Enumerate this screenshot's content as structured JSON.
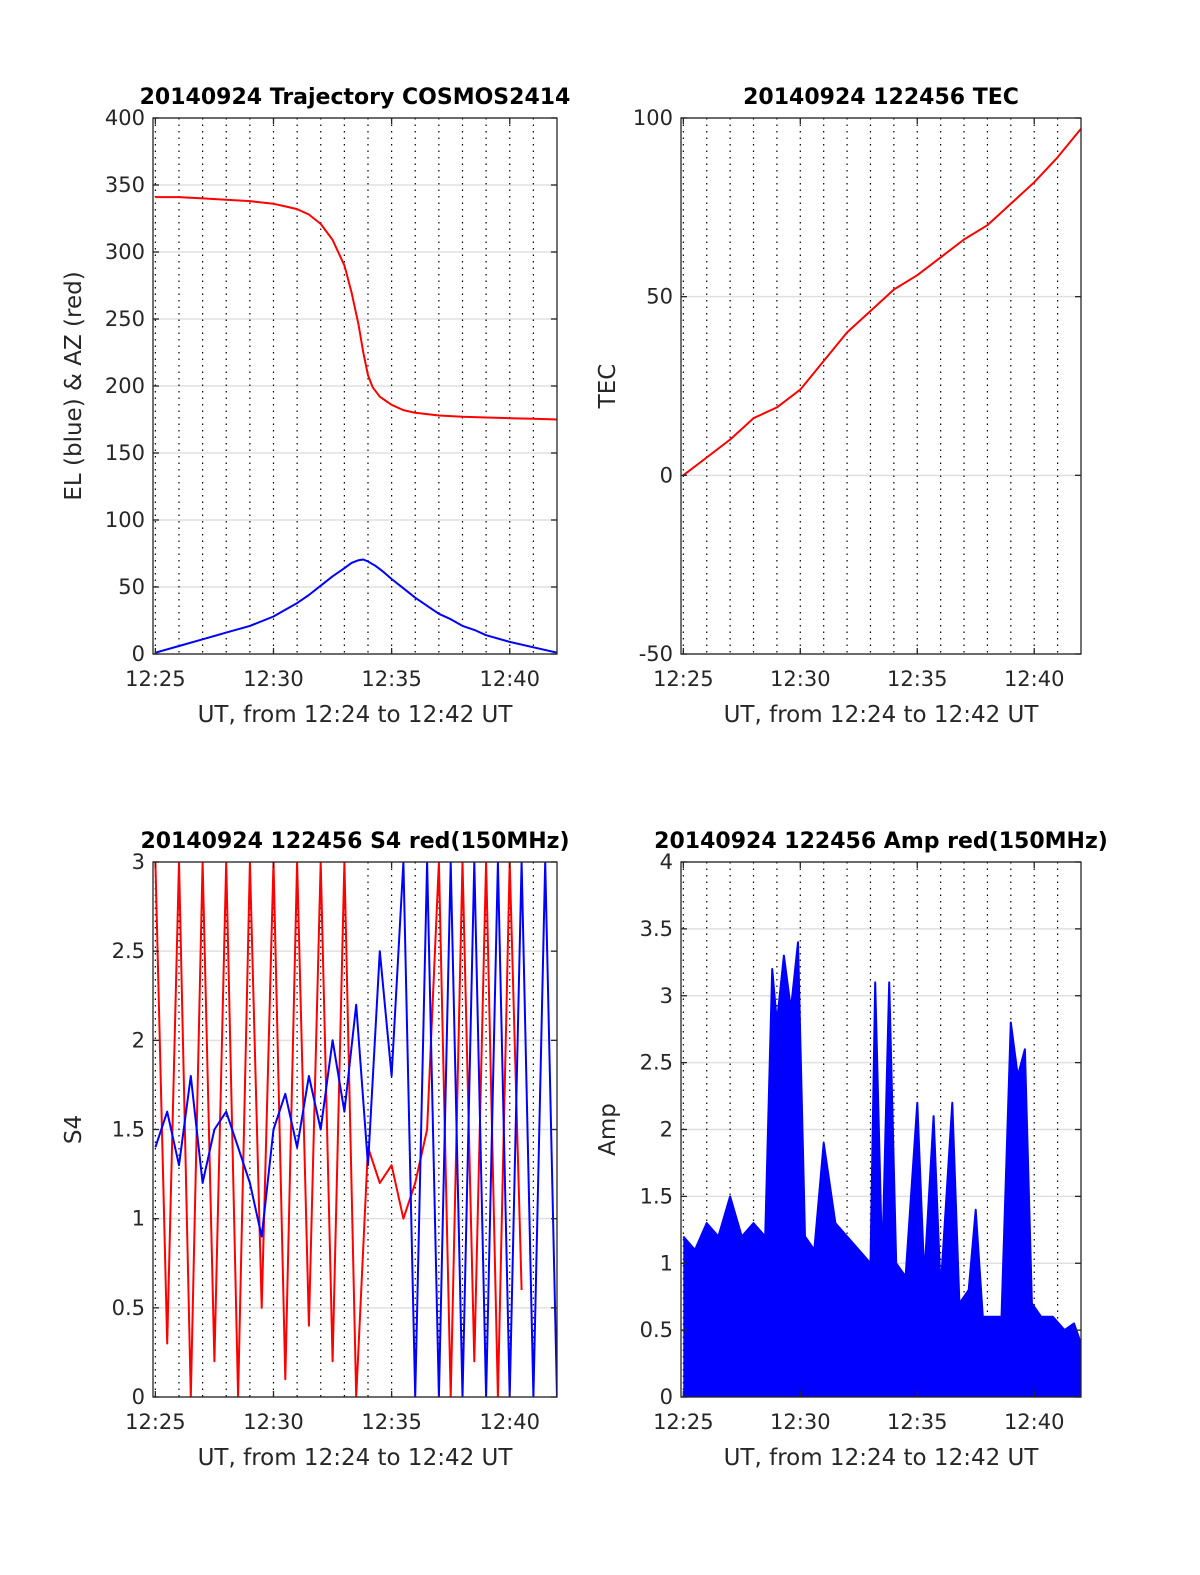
{
  "figure": {
    "panels": [
      {
        "title": "20140924 Trajectory COSMOS2414",
        "xlabel": "UT, from 12:24 to 12:42 UT",
        "ylabel": "EL (blue) & AZ (red)"
      },
      {
        "title": "20140924 122456 TEC",
        "xlabel": "UT, from 12:24 to 12:42 UT",
        "ylabel": "TEC"
      },
      {
        "title": "20140924 122456 S4 red(150MHz)",
        "xlabel": "UT, from 12:24 to 12:42 UT",
        "ylabel": "S4"
      },
      {
        "title": "20140924 122456 Amp red(150MHz)",
        "xlabel": "UT, from 12:24 to 12:42 UT",
        "ylabel": "Amp"
      }
    ]
  },
  "chart_data": [
    {
      "type": "line",
      "title": "20140924 Trajectory COSMOS2414",
      "xlabel": "UT, from 12:24 to 12:42 UT",
      "ylabel": "EL (blue) & AZ (red)",
      "x_unit": "minutes after 12:00 UT",
      "xlim": [
        24.9,
        42
      ],
      "ylim": [
        0,
        400
      ],
      "xticks": [
        25,
        30,
        35,
        40
      ],
      "xtick_labels": [
        "12:25",
        "12:30",
        "12:35",
        "12:40"
      ],
      "yticks": [
        0,
        50,
        100,
        150,
        200,
        250,
        300,
        350,
        400
      ],
      "grid": true,
      "series": [
        {
          "color": "#ff0000",
          "x": [
            25,
            26,
            27,
            28,
            29,
            30,
            30.5,
            31,
            31.5,
            32,
            32.5,
            33,
            33.3,
            33.6,
            33.8,
            34,
            34.2,
            34.5,
            35,
            35.5,
            36,
            36.5,
            37,
            38,
            39,
            40,
            41,
            42
          ],
          "y": [
            341,
            341,
            340,
            339,
            338,
            336,
            334,
            332,
            328,
            321,
            309,
            290,
            270,
            246,
            225,
            208,
            199,
            192,
            186,
            182,
            180,
            179,
            178,
            177,
            176.5,
            176,
            175.5,
            175
          ]
        },
        {
          "color": "#0000ff",
          "x": [
            25,
            26,
            27,
            28,
            29,
            30,
            30.5,
            31,
            31.5,
            32,
            32.5,
            33,
            33.3,
            33.6,
            33.8,
            34,
            34.3,
            34.6,
            35,
            35.5,
            36,
            36.5,
            37,
            37.5,
            38,
            38.5,
            39,
            40,
            41,
            42
          ],
          "y": [
            1,
            6,
            11,
            16,
            21,
            28,
            33,
            38,
            44,
            51,
            58,
            64,
            68,
            70,
            70.5,
            69,
            66,
            62,
            56,
            49,
            42,
            36,
            30,
            26,
            21,
            18,
            14,
            9,
            5,
            1
          ]
        }
      ]
    },
    {
      "type": "line",
      "title": "20140924 122456 TEC",
      "xlabel": "UT, from 12:24 to 12:42 UT",
      "ylabel": "TEC",
      "x_unit": "minutes after 12:00 UT",
      "xlim": [
        24.9,
        42
      ],
      "ylim": [
        -50,
        100
      ],
      "xticks": [
        25,
        30,
        35,
        40
      ],
      "xtick_labels": [
        "12:25",
        "12:30",
        "12:35",
        "12:40"
      ],
      "yticks": [
        -50,
        0,
        50,
        100
      ],
      "grid": true,
      "series": [
        {
          "color": "#ff0000",
          "x": [
            25,
            26,
            27,
            28,
            29,
            30,
            31,
            32,
            33,
            34,
            35,
            36,
            37,
            38,
            39,
            40,
            41,
            42
          ],
          "y": [
            0,
            5,
            10,
            16,
            19,
            24,
            32,
            40,
            46,
            52,
            56,
            61,
            66,
            70,
            76,
            82,
            89,
            97
          ]
        }
      ]
    },
    {
      "type": "line",
      "title": "20140924 122456 S4 red(150MHz)",
      "xlabel": "UT, from 12:24 to 12:42 UT",
      "ylabel": "S4",
      "x_unit": "minutes after 12:00 UT",
      "xlim": [
        24.9,
        42
      ],
      "ylim": [
        0,
        3
      ],
      "xticks": [
        25,
        30,
        35,
        40
      ],
      "xtick_labels": [
        "12:25",
        "12:30",
        "12:35",
        "12:40"
      ],
      "yticks": [
        0,
        0.5,
        1,
        1.5,
        2,
        2.5,
        3
      ],
      "grid": true,
      "series": [
        {
          "color": "#ff0000",
          "x": [
            25,
            25.5,
            26,
            26.5,
            27,
            27.5,
            28,
            28.5,
            29,
            29.5,
            30,
            30.5,
            31,
            31.5,
            32,
            32.5,
            33,
            33.5,
            34,
            34.5,
            35,
            35.5,
            36,
            36.5,
            37,
            37.5,
            38,
            38.5,
            39,
            39.5,
            40,
            40.5
          ],
          "y": [
            3,
            0.3,
            3,
            0,
            3,
            0.2,
            3,
            0,
            3,
            0.5,
            3,
            0.1,
            3,
            0.4,
            3,
            0.2,
            3,
            0,
            1.4,
            1.2,
            1.3,
            1.0,
            1.2,
            1.5,
            3,
            0,
            3,
            0.2,
            3,
            0,
            3,
            0.6
          ]
        },
        {
          "color": "#0000ff",
          "x": [
            25,
            25.5,
            26,
            26.5,
            27,
            27.5,
            28,
            28.5,
            29,
            29.5,
            30,
            30.5,
            31,
            31.5,
            32,
            32.5,
            33,
            33.5,
            34,
            34.5,
            35,
            35.5,
            36,
            36.5,
            37,
            37.5,
            38,
            38.5,
            39,
            39.5,
            40,
            40.5,
            41,
            41.5,
            42
          ],
          "y": [
            1.4,
            1.6,
            1.3,
            1.8,
            1.2,
            1.5,
            1.6,
            1.4,
            1.2,
            0.9,
            1.5,
            1.7,
            1.4,
            1.8,
            1.5,
            2.0,
            1.6,
            2.2,
            1.3,
            2.5,
            1.8,
            3,
            0,
            3,
            0,
            3,
            0,
            3,
            0,
            3,
            0,
            3,
            0,
            3,
            0
          ]
        }
      ]
    },
    {
      "type": "area",
      "title": "20140924 122456 Amp red(150MHz)",
      "xlabel": "UT, from 12:24 to 12:42 UT",
      "ylabel": "Amp",
      "x_unit": "minutes after 12:00 UT",
      "xlim": [
        24.9,
        42
      ],
      "ylim": [
        0,
        4
      ],
      "xticks": [
        25,
        30,
        35,
        40
      ],
      "xtick_labels": [
        "12:25",
        "12:30",
        "12:35",
        "12:40"
      ],
      "yticks": [
        0,
        0.5,
        1,
        1.5,
        2,
        2.5,
        3,
        3.5,
        4
      ],
      "grid": true,
      "series": [
        {
          "color": "#0000ff",
          "x": [
            25,
            25.5,
            26,
            26.5,
            27,
            27.5,
            28,
            28.5,
            28.8,
            29,
            29.3,
            29.6,
            29.9,
            30.2,
            30.6,
            31,
            31.5,
            32,
            32.5,
            33,
            33.2,
            33.5,
            33.8,
            34.1,
            34.5,
            35,
            35.3,
            35.7,
            36,
            36.5,
            36.8,
            37.2,
            37.5,
            37.8,
            38.2,
            38.6,
            39,
            39.3,
            39.6,
            39.9,
            40.3,
            40.8,
            41.3,
            41.7,
            42
          ],
          "y": [
            1.2,
            1.1,
            1.3,
            1.2,
            1.5,
            1.2,
            1.3,
            1.2,
            3.2,
            2.8,
            3.3,
            2.9,
            3.4,
            1.2,
            1.1,
            1.9,
            1.3,
            1.2,
            1.1,
            1.0,
            3.1,
            1.0,
            3.1,
            1.0,
            0.9,
            2.2,
            0.9,
            2.1,
            0.8,
            2.2,
            0.7,
            0.8,
            1.4,
            0.6,
            0.6,
            0.6,
            2.8,
            2.4,
            2.6,
            0.7,
            0.6,
            0.6,
            0.5,
            0.55,
            0.4
          ]
        }
      ]
    }
  ]
}
